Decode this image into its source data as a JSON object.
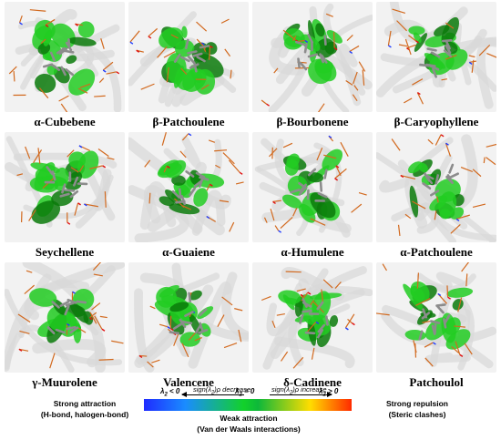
{
  "panels": [
    {
      "label": "α-Cubebene"
    },
    {
      "label": "β-Patchoulene"
    },
    {
      "label": "β-Bourbonene"
    },
    {
      "label": "β-Caryophyllene"
    },
    {
      "label": "Seychellene"
    },
    {
      "label": "α-Guaiene"
    },
    {
      "label": "α-Humulene"
    },
    {
      "label": "α-Patchoulene"
    },
    {
      "label": "γ-Muurolene"
    },
    {
      "label": "Valencene"
    },
    {
      "label": "δ-Cadinene"
    },
    {
      "label": "Patchoulol"
    }
  ],
  "legend": {
    "strong_attraction": "Strong attraction",
    "strong_attraction_sub": "(H-bond, halogen-bond)",
    "strong_repulsion": "Strong repulsion",
    "strong_repulsion_sub": "(Steric clashes)",
    "weak_attraction": "Weak attraction",
    "weak_attraction_sub": "(Van der Waals interactions)",
    "lambda_neg": "λ2 < 0",
    "lambda_zero": "λ2 = 0",
    "lambda_pos": "λ2 > 0",
    "sign_decrease": "sign(λ2)ρ decrease",
    "sign_increase": "sign(λ2)ρ increase"
  },
  "colors": {
    "surface_green": "#22cc22",
    "surface_dark_green": "#0a7a0a",
    "residue_orange": "#d2691e",
    "ligand_gray": "#8c8c8c",
    "ribbon_gray": "#d8d8d8"
  }
}
